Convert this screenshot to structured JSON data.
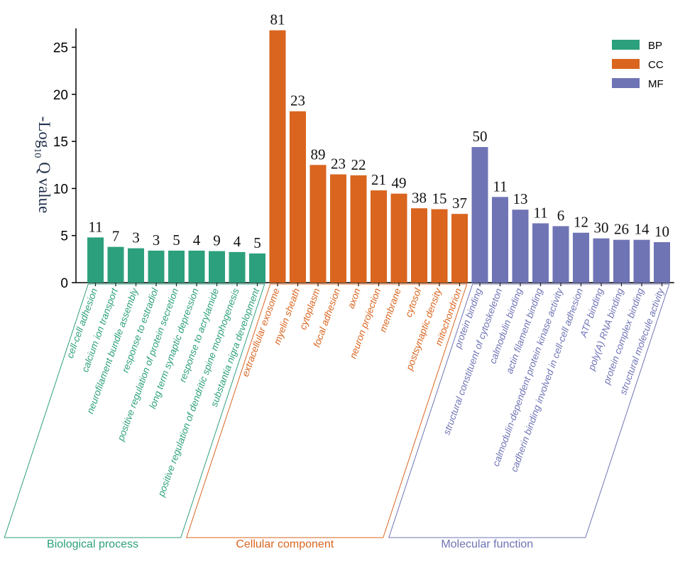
{
  "chart_data": {
    "type": "bar",
    "ylabel_prefix": "-Log",
    "ylabel_subscript": "10",
    "ylabel_suffix": " Q value",
    "ylim": [
      0,
      27
    ],
    "yticks": [
      0,
      5,
      10,
      15,
      20,
      25
    ],
    "legend_position": "top-right",
    "groups": [
      {
        "key": "BP",
        "name": "Biological process",
        "color": "#2ca07c"
      },
      {
        "key": "CC",
        "name": "Cellular component",
        "color": "#d9651f"
      },
      {
        "key": "MF",
        "name": "Molecular function",
        "color": "#6f74b5"
      }
    ],
    "bars": [
      {
        "label": "cell-cell adhesion",
        "group": "BP",
        "value": 4.8,
        "count": "11"
      },
      {
        "label": "calcium ion transport",
        "group": "BP",
        "value": 3.8,
        "count": "7"
      },
      {
        "label": "neurofilament bundle assembly",
        "group": "BP",
        "value": 3.65,
        "count": "3"
      },
      {
        "label": "response to estradiol",
        "group": "BP",
        "value": 3.4,
        "count": "3"
      },
      {
        "label": "positive regulation of protein secretion",
        "group": "BP",
        "value": 3.4,
        "count": "5"
      },
      {
        "label": "long term synaptic depression",
        "group": "BP",
        "value": 3.4,
        "count": "4"
      },
      {
        "label": "response to acrylamide",
        "group": "BP",
        "value": 3.35,
        "count": "9"
      },
      {
        "label": "positive regulation of dendritic spine morphogenesis",
        "group": "BP",
        "value": 3.25,
        "count": "4"
      },
      {
        "label": "substantia nigra development",
        "group": "BP",
        "value": 3.1,
        "count": "5"
      },
      {
        "label": "extracellular exosome",
        "group": "CC",
        "value": 26.8,
        "count": "81"
      },
      {
        "label": "myelin sheath",
        "group": "CC",
        "value": 18.2,
        "count": "23"
      },
      {
        "label": "cytoplasm",
        "group": "CC",
        "value": 12.5,
        "count": "89"
      },
      {
        "label": "focal adhesion",
        "group": "CC",
        "value": 11.5,
        "count": "23"
      },
      {
        "label": "axon",
        "group": "CC",
        "value": 11.4,
        "count": "22"
      },
      {
        "label": "neuron projection",
        "group": "CC",
        "value": 9.8,
        "count": "21"
      },
      {
        "label": "membrane",
        "group": "CC",
        "value": 9.45,
        "count": "49"
      },
      {
        "label": "cytosol",
        "group": "CC",
        "value": 7.9,
        "count": "38"
      },
      {
        "label": "postsynaptic density",
        "group": "CC",
        "value": 7.8,
        "count": "15"
      },
      {
        "label": "mitochondrion",
        "group": "CC",
        "value": 7.3,
        "count": "37"
      },
      {
        "label": "protein binding",
        "group": "MF",
        "value": 14.4,
        "count": "50"
      },
      {
        "label": "structural constituent of cytoskeleton",
        "group": "MF",
        "value": 9.1,
        "count": "11"
      },
      {
        "label": "calmodulin binding",
        "group": "MF",
        "value": 7.75,
        "count": "13"
      },
      {
        "label": "actin filament binding",
        "group": "MF",
        "value": 6.3,
        "count": "11"
      },
      {
        "label": "calmodulin-dependent protein kinase activity",
        "group": "MF",
        "value": 6.0,
        "count": "6"
      },
      {
        "label": "cadherin binding involved in cell-cell adhesion",
        "group": "MF",
        "value": 5.3,
        "count": "12"
      },
      {
        "label": "ATP binding",
        "group": "MF",
        "value": 4.7,
        "count": "30"
      },
      {
        "label": "poly(A) RNA binding",
        "group": "MF",
        "value": 4.55,
        "count": "26"
      },
      {
        "label": "protein complex binding",
        "group": "MF",
        "value": 4.55,
        "count": "14"
      },
      {
        "label": "structural molecule activity",
        "group": "MF",
        "value": 4.3,
        "count": "10"
      }
    ]
  }
}
